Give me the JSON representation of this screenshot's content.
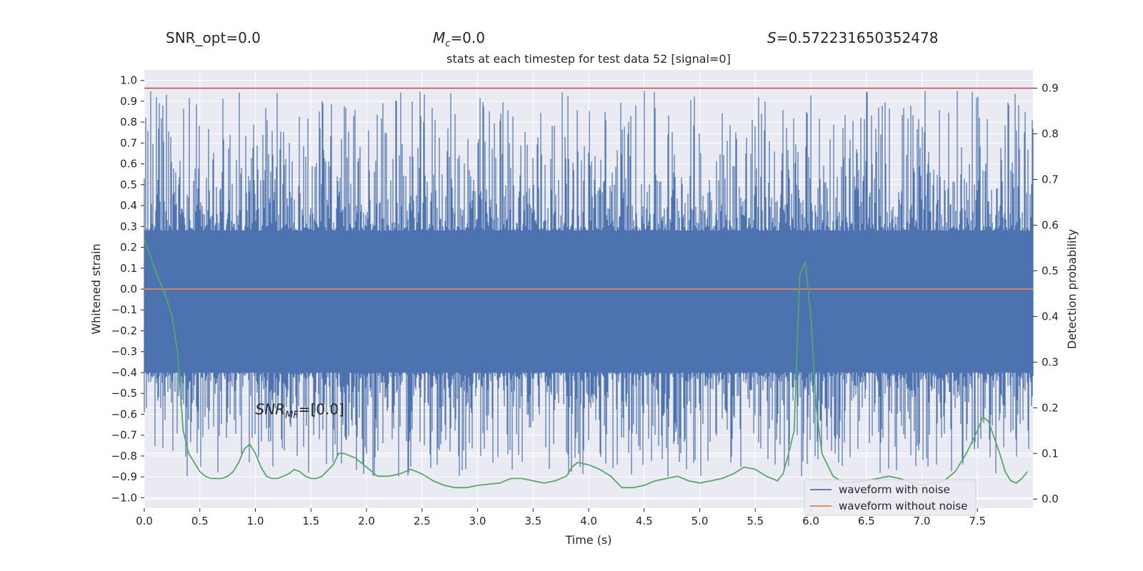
{
  "header": {
    "snr_opt": "SNR_opt=0.0",
    "mc_symbol": "M",
    "mc_sub": "c",
    "mc_value": "=0.0",
    "s_symbol": "S",
    "s_value": "=0.572231650352478"
  },
  "chart_data": {
    "type": "line",
    "title": "stats at each timestep for test data 52 [signal=0]",
    "xlabel": "Time (s)",
    "ylabel": "Whitened strain",
    "y2label": "Detection probability",
    "xlim": [
      0.0,
      8.0
    ],
    "ylim": [
      -1.05,
      1.05
    ],
    "y2lim": [
      -0.02,
      0.94
    ],
    "x_ticks": [
      "0.0",
      "0.5",
      "1.0",
      "1.5",
      "2.0",
      "2.5",
      "3.0",
      "3.5",
      "4.0",
      "4.5",
      "5.0",
      "5.5",
      "6.0",
      "6.5",
      "7.0",
      "7.5"
    ],
    "y_ticks": [
      "1.0",
      "0.9",
      "0.8",
      "0.7",
      "0.6",
      "0.5",
      "0.4",
      "0.3",
      "0.2",
      "0.1",
      "0.0",
      "-0.1",
      "-0.2",
      "-0.3",
      "-0.4",
      "-0.5",
      "-0.6",
      "-0.7",
      "-0.8",
      "-0.9",
      "-1.0"
    ],
    "y2_ticks": [
      "0.9",
      "0.8",
      "0.7",
      "0.6",
      "0.5",
      "0.4",
      "0.3",
      "0.2",
      "0.1",
      "0.0"
    ],
    "threshold": {
      "y": 0.9,
      "color": "#c44e52"
    },
    "annotation": {
      "symbol": "SNR",
      "sub": "MF",
      "value": "=[0.0]",
      "x": 1.0,
      "y": -0.6
    },
    "series": [
      {
        "name": "waveform with noise",
        "color": "#4c72b0",
        "axis": "left",
        "note": "dense noise trace",
        "band_max": [
          0.28,
          0.95
        ],
        "band_min": [
          -0.4,
          -0.9
        ]
      },
      {
        "name": "waveform without noise",
        "color": "#dd8452",
        "axis": "left",
        "values": [
          0.0,
          0.0
        ],
        "x": [
          0.0,
          8.0
        ]
      },
      {
        "name": "detection probability",
        "color": "#55a868",
        "axis": "right",
        "x": [
          0.0,
          0.1,
          0.2,
          0.25,
          0.3,
          0.35,
          0.4,
          0.45,
          0.5,
          0.55,
          0.6,
          0.65,
          0.7,
          0.75,
          0.8,
          0.85,
          0.9,
          0.95,
          1.0,
          1.05,
          1.1,
          1.15,
          1.2,
          1.3,
          1.35,
          1.4,
          1.45,
          1.5,
          1.55,
          1.6,
          1.7,
          1.75,
          1.8,
          1.9,
          2.0,
          2.1,
          2.2,
          2.3,
          2.4,
          2.45,
          2.5,
          2.6,
          2.7,
          2.8,
          2.9,
          3.0,
          3.2,
          3.3,
          3.4,
          3.5,
          3.6,
          3.7,
          3.8,
          3.85,
          3.9,
          4.0,
          4.1,
          4.2,
          4.3,
          4.4,
          4.5,
          4.6,
          4.7,
          4.8,
          4.9,
          5.0,
          5.1,
          5.2,
          5.3,
          5.4,
          5.5,
          5.6,
          5.7,
          5.75,
          5.8,
          5.85,
          5.9,
          5.95,
          6.0,
          6.05,
          6.1,
          6.2,
          6.3,
          6.5,
          6.7,
          6.8,
          7.0,
          7.1,
          7.2,
          7.3,
          7.4,
          7.5,
          7.55,
          7.6,
          7.7,
          7.75,
          7.8,
          7.85,
          7.9,
          7.95
        ],
        "values": [
          0.57,
          0.5,
          0.44,
          0.4,
          0.32,
          0.15,
          0.1,
          0.08,
          0.06,
          0.05,
          0.045,
          0.045,
          0.045,
          0.05,
          0.06,
          0.08,
          0.11,
          0.12,
          0.1,
          0.07,
          0.05,
          0.045,
          0.045,
          0.055,
          0.065,
          0.06,
          0.05,
          0.045,
          0.045,
          0.05,
          0.075,
          0.1,
          0.1,
          0.09,
          0.07,
          0.05,
          0.05,
          0.055,
          0.065,
          0.06,
          0.055,
          0.04,
          0.03,
          0.025,
          0.025,
          0.03,
          0.035,
          0.045,
          0.045,
          0.04,
          0.035,
          0.04,
          0.05,
          0.07,
          0.08,
          0.075,
          0.065,
          0.05,
          0.025,
          0.025,
          0.03,
          0.04,
          0.045,
          0.05,
          0.04,
          0.035,
          0.04,
          0.045,
          0.055,
          0.07,
          0.065,
          0.05,
          0.04,
          0.055,
          0.1,
          0.15,
          0.49,
          0.52,
          0.4,
          0.2,
          0.1,
          0.05,
          0.035,
          0.04,
          0.05,
          0.045,
          0.03,
          0.035,
          0.04,
          0.06,
          0.1,
          0.15,
          0.18,
          0.17,
          0.1,
          0.06,
          0.04,
          0.035,
          0.045,
          0.06
        ]
      }
    ],
    "legend": {
      "placement": "lower-right",
      "entries": [
        "waveform with noise",
        "waveform without noise"
      ]
    }
  }
}
